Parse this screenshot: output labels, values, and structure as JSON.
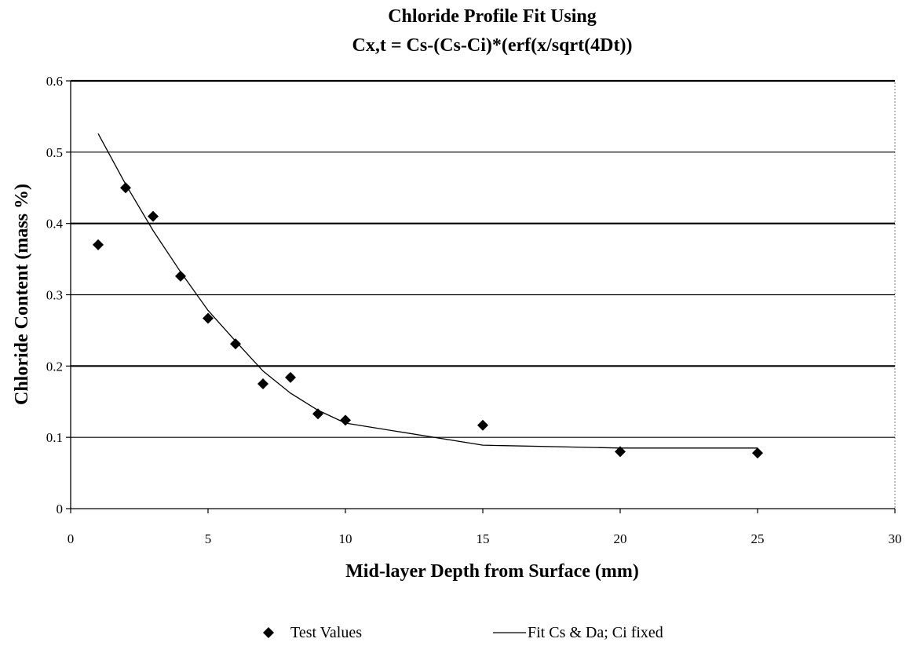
{
  "chart_data": {
    "type": "scatter",
    "title_lines": [
      "Chloride Profile Fit Using",
      "Cx,t = Cs-(Cs-Ci)*(erf(x/sqrt(4Dt))"
    ],
    "xlabel": "Mid-layer Depth from Surface (mm)",
    "ylabel": "Chloride Content (mass %)",
    "xlim": [
      0,
      30
    ],
    "ylim": [
      0,
      0.6
    ],
    "xticks": [
      0,
      5,
      10,
      15,
      20,
      25,
      30
    ],
    "yticks": [
      0,
      0.1,
      0.2,
      0.3,
      0.4,
      0.5,
      0.6
    ],
    "xtick_labels": [
      "0",
      "5",
      "10",
      "15",
      "20",
      "25",
      "30"
    ],
    "ytick_labels": [
      "0",
      "0.1",
      "0.2",
      "0.3",
      "0.4",
      "0.5",
      "0.6"
    ],
    "grid": "horizontal",
    "legend_position": "bottom",
    "series": [
      {
        "name": "Test Values",
        "kind": "markers",
        "marker": "diamond",
        "color": "#000000",
        "x": [
          1,
          2,
          3,
          4,
          5,
          6,
          7,
          8,
          9,
          10,
          15,
          20,
          25
        ],
        "y": [
          0.37,
          0.45,
          0.41,
          0.326,
          0.267,
          0.231,
          0.175,
          0.184,
          0.133,
          0.124,
          0.117,
          0.08,
          0.078
        ]
      },
      {
        "name": "Fit Cs & Da; Ci fixed",
        "kind": "line",
        "color": "#000000",
        "x": [
          1,
          2,
          3,
          4,
          5,
          6,
          7,
          8,
          9,
          10,
          15,
          20,
          25
        ],
        "y": [
          0.526,
          0.455,
          0.39,
          0.332,
          0.278,
          0.235,
          0.193,
          0.162,
          0.138,
          0.12,
          0.089,
          0.085,
          0.085
        ]
      }
    ]
  }
}
